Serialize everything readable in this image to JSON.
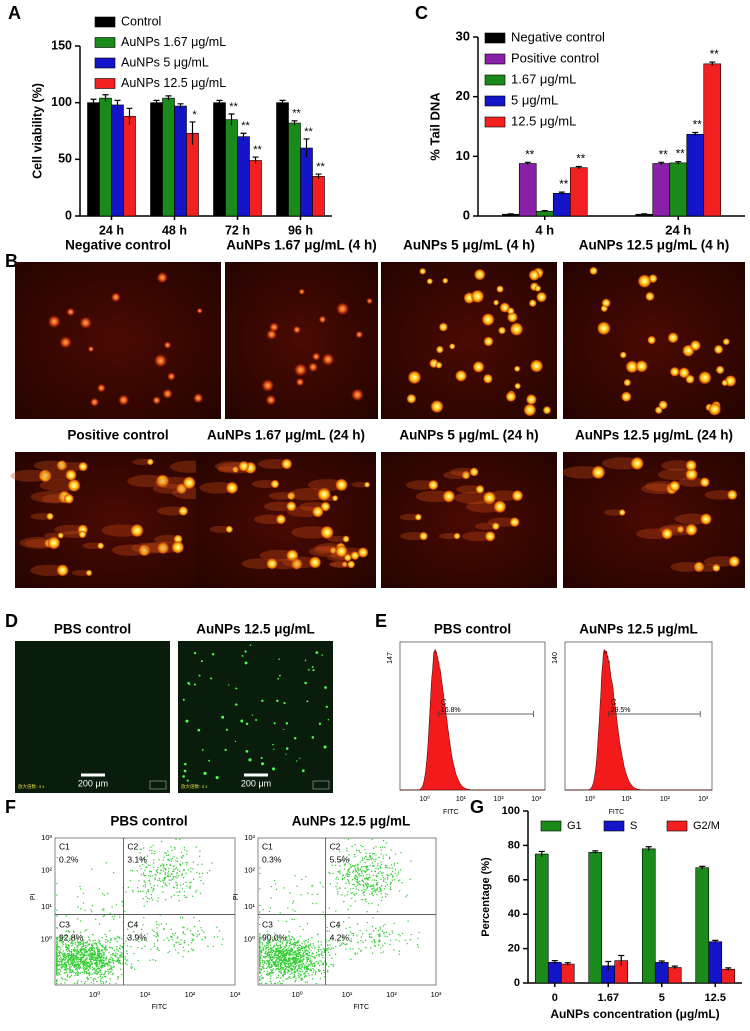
{
  "chart_data": [
    {
      "type": "bar",
      "y_label": "Cell viability (%)",
      "categories": [
        "24 h",
        "48 h",
        "72 h",
        "96 h"
      ],
      "ylim": [
        0,
        150
      ],
      "yticks": [
        0,
        50,
        100,
        150
      ],
      "series": [
        {
          "name": "Control",
          "color": "#000000",
          "values": [
            100,
            100,
            100,
            100
          ],
          "errors": [
            3,
            2,
            2,
            2
          ],
          "significance": [
            null,
            null,
            null,
            null
          ]
        },
        {
          "name": "AuNPs 1.67  μg/mL",
          "color": "#1a8a1a",
          "values": [
            104,
            104,
            85,
            82
          ],
          "errors": [
            3,
            2,
            5,
            2
          ],
          "significance": [
            null,
            null,
            "**",
            "**"
          ]
        },
        {
          "name": "AuNPs 5 μg/mL",
          "color": "#1414c8",
          "values": [
            98,
            97,
            70,
            60
          ],
          "errors": [
            4,
            2,
            3,
            8
          ],
          "significance": [
            null,
            null,
            "**",
            "**"
          ]
        },
        {
          "name": "AuNPs 12.5 μg/mL",
          "color": "#f22020",
          "values": [
            88,
            73,
            49,
            35
          ],
          "errors": [
            7,
            10,
            3,
            2
          ],
          "significance": [
            null,
            "*",
            "**",
            "**"
          ]
        }
      ]
    },
    {
      "type": "bar",
      "y_label": "% Tail DNA",
      "categories": [
        "4 h",
        "24 h"
      ],
      "ylim": [
        0,
        30
      ],
      "yticks": [
        0,
        10,
        20,
        30
      ],
      "series": [
        {
          "name": "Negative control",
          "color": "#000000",
          "values": [
            0.3,
            0.3
          ],
          "errors": [
            0.05,
            0.05
          ],
          "significance": [
            null,
            null
          ]
        },
        {
          "name": "Positive control",
          "color": "#8a1fa8",
          "values": [
            8.8,
            8.8
          ],
          "errors": [
            0.2,
            0.2
          ],
          "significance": [
            "**",
            "**"
          ]
        },
        {
          "name": "1.67 μg/mL",
          "color": "#1a8a1a",
          "values": [
            0.8,
            8.9
          ],
          "errors": [
            0.1,
            0.2
          ],
          "significance": [
            null,
            "**"
          ]
        },
        {
          "name": "5 μg/mL",
          "color": "#1414c8",
          "values": [
            3.8,
            13.7
          ],
          "errors": [
            0.2,
            0.3
          ],
          "significance": [
            "**",
            "**"
          ]
        },
        {
          "name": "12.5 μg/mL",
          "color": "#f22020",
          "values": [
            8.1,
            25.5
          ],
          "errors": [
            0.2,
            0.3
          ],
          "significance": [
            "**",
            "**"
          ]
        }
      ]
    },
    {
      "type": "bar",
      "y_label": "Percentage (%)",
      "x_label": "AuNPs concentration (μg/mL)",
      "categories": [
        "0",
        "1.67",
        "5",
        "12.5"
      ],
      "ylim": [
        0,
        100
      ],
      "yticks": [
        0,
        20,
        40,
        60,
        80,
        100
      ],
      "series": [
        {
          "name": "G1",
          "color": "#1a8a1a",
          "values": [
            75,
            76,
            78,
            67
          ],
          "errors": [
            1.5,
            0.8,
            1.2,
            0.8
          ]
        },
        {
          "name": "S",
          "color": "#1414c8",
          "values": [
            12,
            10,
            12,
            24
          ],
          "errors": [
            1,
            2.5,
            0.8,
            0.8
          ]
        },
        {
          "name": "G2/M",
          "color": "#f22020",
          "values": [
            11,
            13,
            9,
            8
          ],
          "errors": [
            0.8,
            3,
            0.8,
            0.8
          ]
        }
      ]
    }
  ],
  "panel_labels": [
    "A",
    "B",
    "C",
    "D",
    "E",
    "F",
    "G"
  ],
  "comet_assay": {
    "images": [
      "Negative control",
      "AuNPs 1.67 μg/mL (4 h)",
      "AuNPs 5 μg/mL (4 h)",
      "AuNPs 12.5 μg/mL (4 h)",
      "Positive control",
      "AuNPs 1.67 μg/mL (24 h)",
      "AuNPs 5 μg/mL (24 h)",
      "AuNPs 12.5 μg/mL (24 h)"
    ]
  },
  "ros_imaging": {
    "images": [
      {
        "title": "PBS control",
        "scale_bar": "200 μm",
        "magnification": "放大倍数: 4 x"
      },
      {
        "title": "AuNPs 12.5 μg/mL",
        "scale_bar": "200 μm",
        "magnification": "放大倍数: 4 x"
      }
    ]
  },
  "flow_histograms": {
    "x_label": "FITC",
    "x_ticks": [
      "10⁰",
      "10¹",
      "10²",
      "10³"
    ],
    "plots": [
      {
        "title": "PBS control",
        "y_max": "147",
        "gate": "C",
        "gate_percent": "16.8%"
      },
      {
        "title": "AuNPs 12.5 μg/mL",
        "y_max": "140",
        "gate": "C",
        "gate_percent": "29.5%"
      }
    ]
  },
  "flow_quadrants": {
    "x_label": "FITC",
    "y_label": "PI",
    "ticks": [
      "10⁰",
      "10¹",
      "10²",
      "10³"
    ],
    "plots": [
      {
        "title": "PBS control",
        "quadrants": [
          {
            "name": "C1",
            "percent": "0.2%"
          },
          {
            "name": "C2",
            "percent": "3.1%"
          },
          {
            "name": "C3",
            "percent": "92.8%"
          },
          {
            "name": "C4",
            "percent": "3.9%"
          }
        ]
      },
      {
        "title": "AuNPs 12.5 μg/mL",
        "quadrants": [
          {
            "name": "C1",
            "percent": "0.3%"
          },
          {
            "name": "C2",
            "percent": "5.5%"
          },
          {
            "name": "C3",
            "percent": "90.0%"
          },
          {
            "name": "C4",
            "percent": "4.2%"
          }
        ]
      }
    ]
  }
}
